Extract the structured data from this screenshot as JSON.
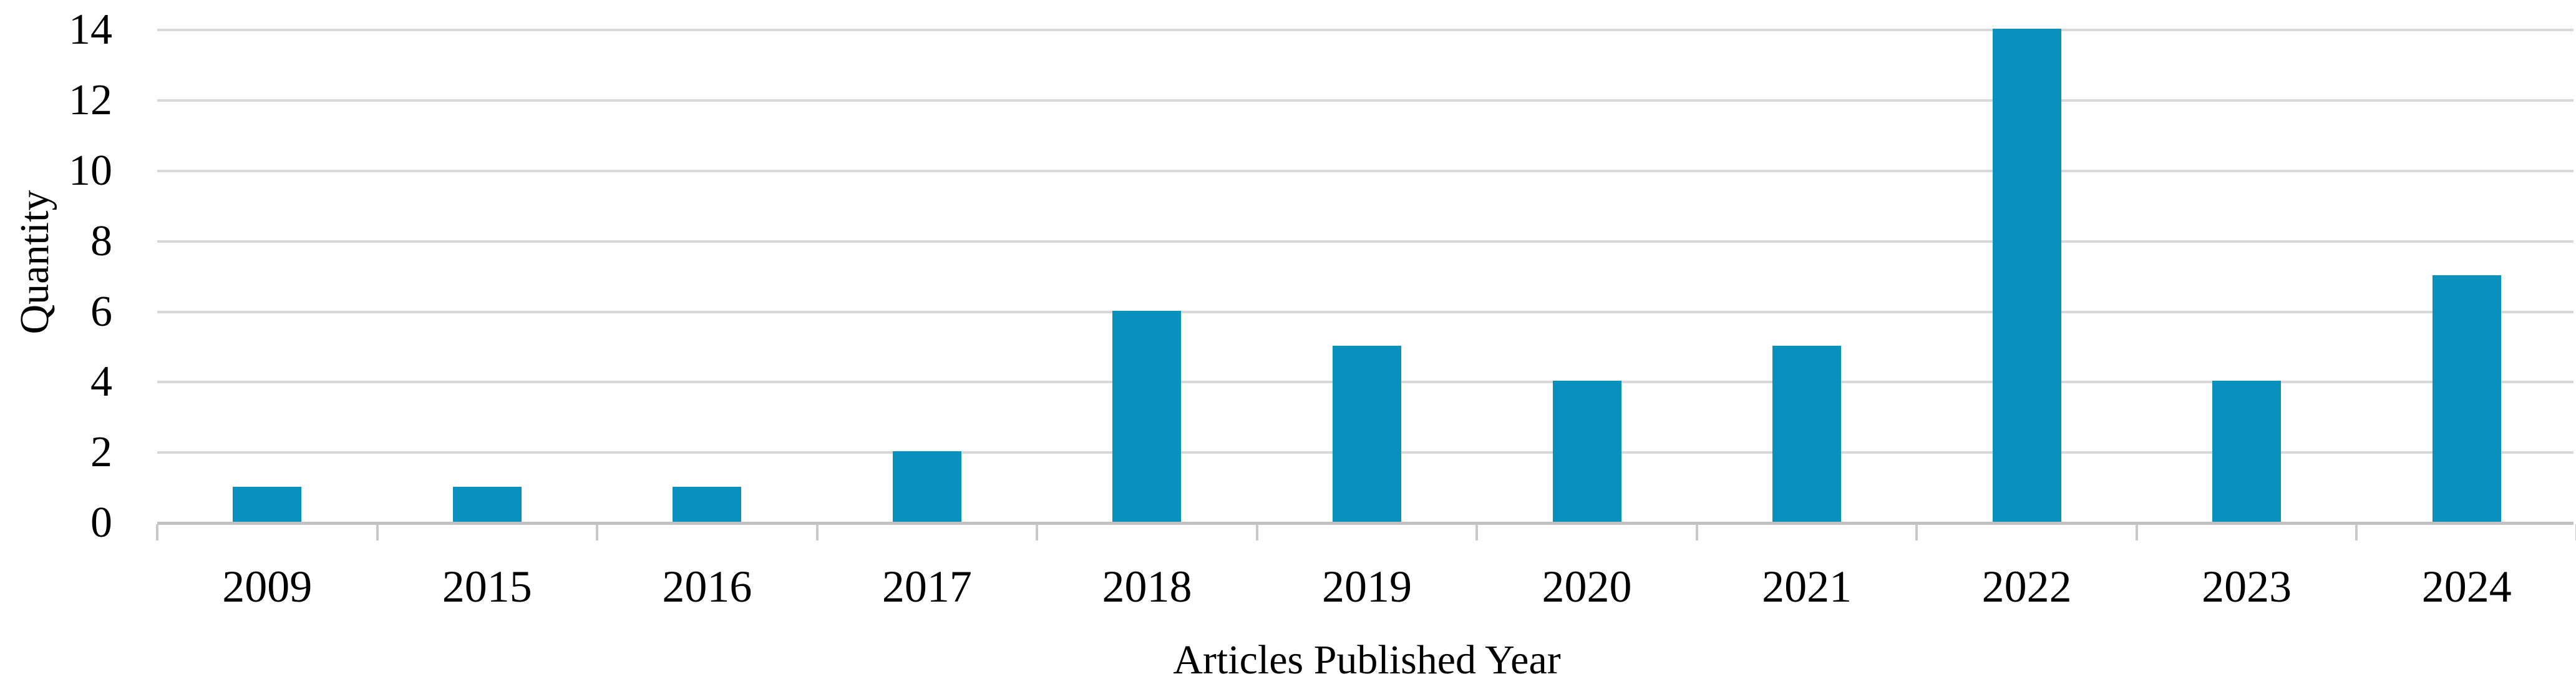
{
  "chart_data": {
    "type": "bar",
    "categories": [
      "2009",
      "2015",
      "2016",
      "2017",
      "2018",
      "2019",
      "2020",
      "2021",
      "2022",
      "2023",
      "2024"
    ],
    "values": [
      1,
      1,
      1,
      2,
      6,
      5,
      4,
      5,
      14,
      4,
      7
    ],
    "title": "",
    "xlabel": "Articles Published Year",
    "ylabel": "Quantity",
    "ylim": [
      0,
      14
    ],
    "yticks": [
      0,
      2,
      4,
      6,
      8,
      10,
      12,
      14
    ],
    "grid": true,
    "legend": false,
    "colors": {
      "bar_fill": "#0791bc",
      "gridline": "#d8d8d8",
      "axis_line": "#c1c1c1",
      "tick_mark": "#c9c9c9",
      "text": "#000000"
    }
  }
}
